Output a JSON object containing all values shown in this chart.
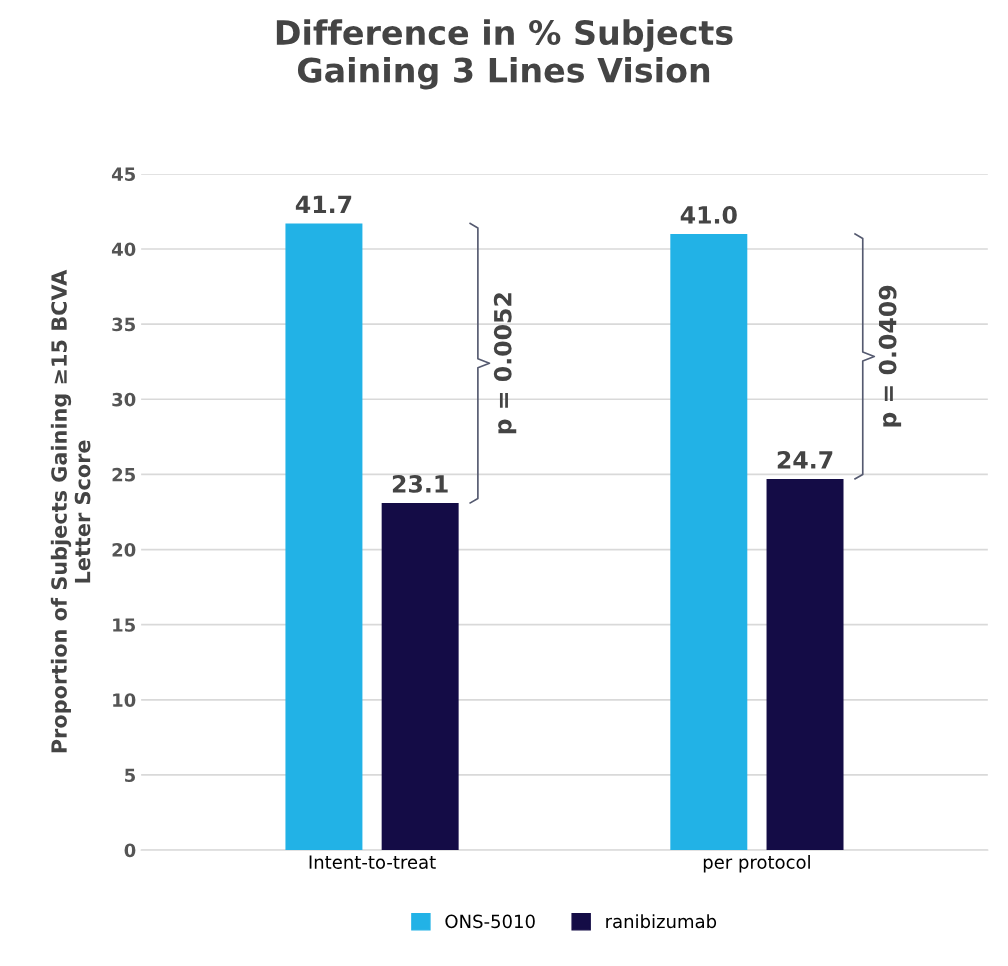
{
  "chart_data": {
    "type": "bar",
    "title": "Difference in % Subjects\nGaining 3 Lines Vision",
    "ylabel": "Proportion of Subjects Gaining ≥15 BCVA\nLetter Score",
    "categories": [
      "Intent-to-treat",
      "per protocol"
    ],
    "series": [
      {
        "name": "ONS-5010",
        "color": "#22b2e6",
        "values": [
          41.7,
          41.0
        ],
        "value_labels": [
          "41.7",
          "41.0"
        ]
      },
      {
        "name": "ranibizumab",
        "color": "#140c46",
        "values": [
          23.1,
          24.7
        ],
        "value_labels": [
          "23.1",
          "24.7"
        ]
      }
    ],
    "ylim": [
      0,
      45
    ],
    "yticks": [
      0,
      5,
      10,
      15,
      20,
      25,
      30,
      35,
      40,
      45
    ],
    "grid": "y",
    "legend": "bottom",
    "annotations": [
      "p = 0.0052",
      "p = 0.0409"
    ]
  }
}
